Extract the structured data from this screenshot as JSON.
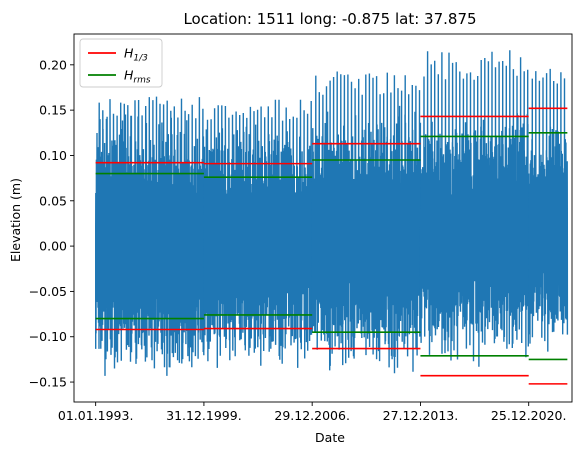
{
  "chart_data": {
    "type": "line",
    "title": "Location: 1511 long: -0.875 lat: 37.875",
    "xlabel": "Date",
    "ylabel": "Elevation (m)",
    "x_ticks": [
      "01.01.1993.",
      "31.12.1999.",
      "29.12.2006.",
      "27.12.2013.",
      "25.12.2020."
    ],
    "x_tick_years": [
      1993.0,
      2000.0,
      2007.0,
      2014.0,
      2021.0
    ],
    "xlim": [
      1991.6,
      2023.8
    ],
    "ylim": [
      -0.172,
      0.234
    ],
    "y_ticks": [
      -0.15,
      -0.1,
      -0.05,
      0.0,
      0.05,
      0.1,
      0.15,
      0.2
    ],
    "y_tick_labels": [
      "−0.15",
      "−0.10",
      "−0.05",
      "0.00",
      "0.05",
      "0.10",
      "0.15",
      "0.20"
    ],
    "legend": {
      "position": "top-left",
      "entries": [
        {
          "label": "H",
          "sub": "1/3",
          "color": "#ff0000"
        },
        {
          "label": "H",
          "sub": "rms",
          "color": "#008000"
        }
      ]
    },
    "series": [
      {
        "name": "Elevation",
        "color": "#1f77b4",
        "segments": [
          {
            "start": 1993.0,
            "end": 2000.0,
            "min": -0.127,
            "max": 0.165
          },
          {
            "start": 2000.0,
            "end": 2007.0,
            "min": -0.114,
            "max": 0.162
          },
          {
            "start": 2007.0,
            "end": 2014.0,
            "min": -0.1,
            "max": 0.195
          },
          {
            "start": 2014.0,
            "end": 2021.0,
            "min": -0.072,
            "max": 0.216
          },
          {
            "start": 2021.0,
            "end": 2023.5,
            "min": -0.063,
            "max": 0.2
          }
        ]
      },
      {
        "name": "H1/3",
        "color": "#ff0000",
        "segments": [
          {
            "start": 1993.0,
            "end": 2000.0,
            "value": 0.092
          },
          {
            "start": 2000.0,
            "end": 2007.0,
            "value": 0.091
          },
          {
            "start": 2007.0,
            "end": 2014.0,
            "value": 0.113
          },
          {
            "start": 2014.0,
            "end": 2021.0,
            "value": 0.143
          },
          {
            "start": 2021.0,
            "end": 2023.5,
            "value": 0.152
          }
        ]
      },
      {
        "name": "Hrms",
        "color": "#008000",
        "segments": [
          {
            "start": 1993.0,
            "end": 2000.0,
            "value": 0.08
          },
          {
            "start": 2000.0,
            "end": 2007.0,
            "value": 0.076
          },
          {
            "start": 2007.0,
            "end": 2014.0,
            "value": 0.095
          },
          {
            "start": 2014.0,
            "end": 2021.0,
            "value": 0.121
          },
          {
            "start": 2021.0,
            "end": 2023.5,
            "value": 0.125
          }
        ]
      }
    ]
  }
}
